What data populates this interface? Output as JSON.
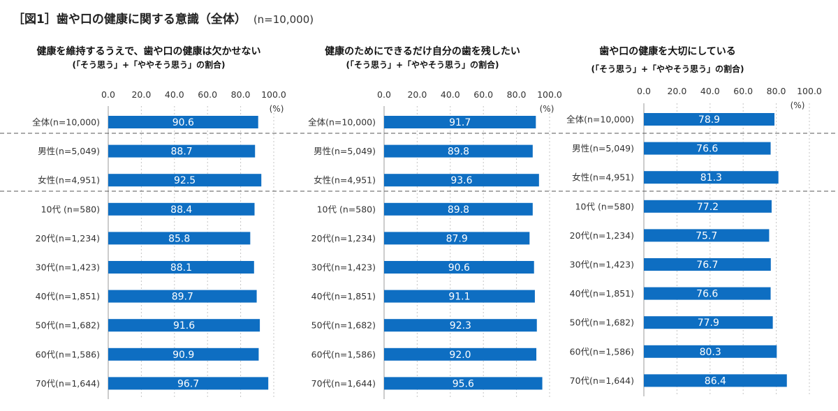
{
  "figure": {
    "title": "［図1］歯や口の健康に関する意識（全体）",
    "n_label": "(n=10,000)"
  },
  "categories": [
    "全体(n=10,000)",
    "男性(n=5,049)",
    "女性(n=4,951)",
    "10代 (n=580)",
    "20代(n=1,234)",
    "30代(n=1,423)",
    "40代(n=1,851)",
    "50代(n=1,682)",
    "60代(n=1,586)",
    "70代(n=1,644)"
  ],
  "chart_data": [
    {
      "type": "bar",
      "orientation": "horizontal",
      "title": "健康を維持するうえで、歯や口の健康は欠かせない",
      "subtitle": "(「そう思う」+「ややそう思う」の割合)",
      "unit": "(%)",
      "xlim": [
        0,
        100
      ],
      "ticks": [
        "0.0",
        "20.0",
        "40.0",
        "60.0",
        "80.0",
        "100.0"
      ],
      "values": [
        90.6,
        88.7,
        92.5,
        88.4,
        85.8,
        88.1,
        89.7,
        91.6,
        90.9,
        96.7
      ],
      "labels": [
        "90.6",
        "88.7",
        "92.5",
        "88.4",
        "85.8",
        "88.1",
        "89.7",
        "91.6",
        "90.9",
        "96.7"
      ],
      "color": "#0E6EC2"
    },
    {
      "type": "bar",
      "orientation": "horizontal",
      "title": "健康のためにできるだけ自分の歯を残したい",
      "subtitle": "(「そう思う」+「ややそう思う」の割合)",
      "unit": "(%)",
      "xlim": [
        0,
        100
      ],
      "ticks": [
        "0.0",
        "20.0",
        "40.0",
        "60.0",
        "80.0",
        "100.0"
      ],
      "values": [
        91.7,
        89.8,
        93.6,
        89.8,
        87.9,
        90.6,
        91.1,
        92.3,
        92.0,
        95.6
      ],
      "labels": [
        "91.7",
        "89.8",
        "93.6",
        "89.8",
        "87.9",
        "90.6",
        "91.1",
        "92.3",
        "92.0",
        "95.6"
      ],
      "color": "#0E6EC2"
    },
    {
      "type": "bar",
      "orientation": "horizontal",
      "title": "歯や口の健康を大切にしている",
      "subtitle": "(「そう思う」+「ややそう思う」の割合)",
      "unit": "(%)",
      "xlim": [
        0,
        100
      ],
      "ticks": [
        "0.0",
        "20.0",
        "40.0",
        "60.0",
        "80.0",
        "100.0"
      ],
      "values": [
        78.9,
        76.6,
        81.3,
        77.2,
        75.7,
        76.7,
        76.6,
        77.9,
        80.3,
        86.4
      ],
      "labels": [
        "78.9",
        "76.6",
        "81.3",
        "77.2",
        "75.7",
        "76.7",
        "76.6",
        "77.9",
        "80.3",
        "86.4"
      ],
      "color": "#0E6EC2"
    }
  ]
}
